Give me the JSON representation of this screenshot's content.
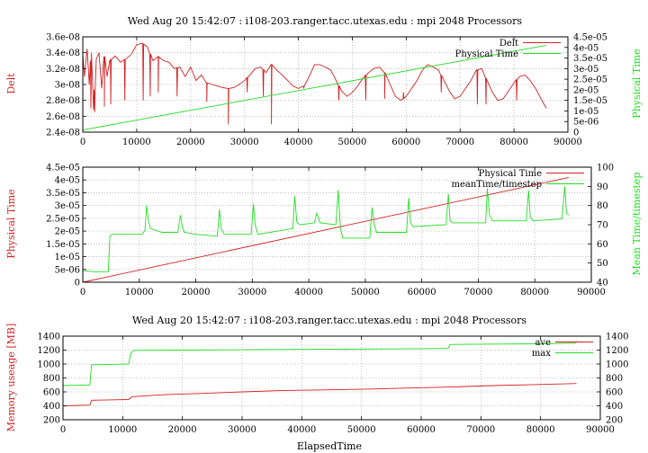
{
  "colors": {
    "red": "#d42020",
    "green": "#22dd22",
    "grid": "#b4b4b4",
    "axis": "#000000",
    "text": "#000000"
  },
  "chart_data": [
    {
      "type": "line",
      "title": "Wed Aug 20 15:42:07 : i108-203.ranger.tacc.utexas.edu : mpi 2048 Processors",
      "xlabel": "",
      "ylabel": "Delt",
      "y2label": "Physical Time",
      "xlim": [
        0,
        90000
      ],
      "ylim": [
        2.4e-08,
        3.6e-08
      ],
      "y2lim": [
        0,
        4.5e-05
      ],
      "xticks": [
        0,
        10000,
        20000,
        30000,
        40000,
        50000,
        60000,
        70000,
        80000,
        90000
      ],
      "yticks": [
        2.4e-08,
        2.6e-08,
        2.8e-08,
        3e-08,
        3.2e-08,
        3.4e-08,
        3.6e-08
      ],
      "yticklabels": [
        "2.4e-08",
        "2.6e-08",
        "2.8e-08",
        "3e-08",
        "3.2e-08",
        "3.4e-08",
        "3.6e-08"
      ],
      "y2ticks": [
        0,
        5e-06,
        1e-05,
        1.5e-05,
        2e-05,
        2.5e-05,
        3e-05,
        3.5e-05,
        4e-05,
        4.5e-05
      ],
      "y2ticklabels": [
        "0",
        "5e-06",
        "1e-05",
        "1.5e-05",
        "2e-05",
        "2.5e-05",
        "3e-05",
        "3.5e-05",
        "4e-05",
        "4.5e-05"
      ],
      "grid": true,
      "legend_position": "top-right",
      "series": [
        {
          "name": "Delt",
          "color": "red",
          "axis": "y",
          "x": [
            0,
            300,
            800,
            1200,
            1600,
            2000,
            2500,
            3000,
            3500,
            4000,
            4500,
            5000,
            6000,
            7000,
            8000,
            9000,
            10000,
            11000,
            12000,
            13000,
            14000,
            15000,
            16000,
            17000,
            18000,
            19000,
            20000,
            21000,
            22000,
            23000,
            24000,
            25000,
            26000,
            27000,
            28000,
            29000,
            30000,
            31000,
            32000,
            33000,
            34000,
            35000,
            36000,
            37000,
            38000,
            39000,
            40000,
            41000,
            42000,
            43000,
            44000,
            45000,
            46000,
            47000,
            48000,
            49000,
            50000,
            51000,
            52000,
            53000,
            54000,
            55000,
            56000,
            57000,
            58000,
            59000,
            60000,
            61000,
            62000,
            63000,
            64000,
            65000,
            66000,
            67000,
            68000,
            69000,
            70000,
            71000,
            72000,
            73000,
            74000,
            75000,
            76000,
            77000,
            78000,
            79000,
            80000,
            81000,
            82000,
            83000,
            84000,
            85000,
            86000
          ],
          "y": [
            3.38e-08,
            3.1e-08,
            3.45e-08,
            3e-08,
            3.4e-08,
            2.68e-08,
            3.32e-08,
            3.4e-08,
            2.95e-08,
            3.35e-08,
            3.1e-08,
            3.3e-08,
            3.36e-08,
            3.28e-08,
            3.32e-08,
            3.38e-08,
            3.5e-08,
            3.52e-08,
            3.47e-08,
            3.3e-08,
            3.35e-08,
            3.3e-08,
            3.28e-08,
            3.2e-08,
            3.22e-08,
            3.1e-08,
            3.22e-08,
            3.05e-08,
            3.12e-08,
            3.02e-08,
            3e-08,
            2.98e-08,
            2.96e-08,
            2.95e-08,
            2.96e-08,
            3e-08,
            3.05e-08,
            3.12e-08,
            3.2e-08,
            3.22e-08,
            3.15e-08,
            3.25e-08,
            3.18e-08,
            3.12e-08,
            3.05e-08,
            2.98e-08,
            2.95e-08,
            2.98e-08,
            3.1e-08,
            3.25e-08,
            3.25e-08,
            3.22e-08,
            3.18e-08,
            3.05e-08,
            2.92e-08,
            2.85e-08,
            2.9e-08,
            2.98e-08,
            3.08e-08,
            3.15e-08,
            3.2e-08,
            3.22e-08,
            3.15e-08,
            3e-08,
            2.85e-08,
            2.8e-08,
            2.85e-08,
            2.95e-08,
            3.05e-08,
            3.18e-08,
            3.25e-08,
            3.22e-08,
            3.18e-08,
            3.05e-08,
            2.92e-08,
            2.82e-08,
            2.85e-08,
            2.95e-08,
            3.05e-08,
            3.18e-08,
            3.2e-08,
            3.05e-08,
            2.9e-08,
            2.8e-08,
            2.82e-08,
            2.92e-08,
            3.02e-08,
            3.1e-08,
            3.12e-08,
            3.05e-08,
            2.95e-08,
            2.82e-08,
            2.7e-08
          ],
          "spikes": [
            [
              1500,
              2.7e-08
            ],
            [
              2200,
              2.65e-08
            ],
            [
              4000,
              2.72e-08
            ],
            [
              5200,
              2.75e-08
            ],
            [
              7800,
              2.8e-08
            ],
            [
              11200,
              2.8e-08
            ],
            [
              12500,
              2.85e-08
            ],
            [
              14000,
              2.9e-08
            ],
            [
              17500,
              2.85e-08
            ],
            [
              23000,
              2.78e-08
            ],
            [
              27000,
              2.5e-08
            ],
            [
              30500,
              2.9e-08
            ],
            [
              33500,
              2.85e-08
            ],
            [
              35000,
              2.5e-08
            ],
            [
              41000,
              2.95e-08
            ],
            [
              47500,
              2.8e-08
            ],
            [
              52500,
              2.8e-08
            ],
            [
              56000,
              2.82e-08
            ],
            [
              59500,
              2.9e-08
            ],
            [
              66500,
              2.9e-08
            ],
            [
              73200,
              2.75e-08
            ],
            [
              74800,
              2.75e-08
            ],
            [
              80500,
              2.8e-08
            ]
          ]
        },
        {
          "name": "Physical Time",
          "color": "green",
          "axis": "y2",
          "x": [
            0,
            86000
          ],
          "y": [
            1e-06,
            4.1e-05
          ]
        }
      ]
    },
    {
      "type": "line",
      "title": "",
      "xlabel": "",
      "ylabel": "Physical Time",
      "y2label": "Mean Time/timestep",
      "xlim": [
        0,
        90000
      ],
      "ylim": [
        0,
        4.5e-05
      ],
      "y2lim": [
        40,
        100
      ],
      "xticks": [
        0,
        10000,
        20000,
        30000,
        40000,
        50000,
        60000,
        70000,
        80000,
        90000
      ],
      "yticks": [
        0,
        5e-06,
        1e-05,
        1.5e-05,
        2e-05,
        2.5e-05,
        3e-05,
        3.5e-05,
        4e-05,
        4.5e-05
      ],
      "yticklabels": [
        "0",
        "5e-06",
        "1e-05",
        "1.5e-05",
        "2e-05",
        "2.5e-05",
        "3e-05",
        "3.5e-05",
        "4e-05",
        "4.5e-05"
      ],
      "y2ticks": [
        40,
        50,
        60,
        70,
        80,
        90,
        100
      ],
      "y2ticklabels": [
        "40",
        "50",
        "60",
        "70",
        "80",
        "90",
        "100"
      ],
      "grid": true,
      "legend_position": "top-right",
      "series": [
        {
          "name": "Physical Time",
          "color": "red",
          "axis": "y",
          "x": [
            0,
            86000
          ],
          "y": [
            0,
            4.1e-05
          ]
        },
        {
          "name": "meanTime/timestep",
          "color": "green",
          "axis": "y2",
          "x": [
            0,
            2000,
            4500,
            4800,
            5200,
            10500,
            11000,
            11300,
            11600,
            12000,
            14000,
            16800,
            17300,
            17600,
            18000,
            20000,
            23800,
            24200,
            24500,
            25000,
            29800,
            30200,
            30500,
            31000,
            37200,
            37500,
            37900,
            38500,
            41000,
            41400,
            42000,
            44800,
            45200,
            45600,
            46000,
            50800,
            51200,
            51600,
            52000,
            57300,
            57700,
            58000,
            58500,
            64300,
            64700,
            65000,
            65500,
            71300,
            71600,
            72000,
            72500,
            78500,
            78900,
            79200,
            79700,
            84800,
            85300,
            85600,
            86000
          ],
          "y": [
            46,
            45.5,
            45.5,
            64,
            65,
            65,
            67,
            80,
            72,
            68,
            66,
            66,
            75,
            69,
            66,
            65,
            64,
            78,
            68,
            65,
            65,
            81,
            70,
            65,
            68,
            85,
            71,
            70,
            71,
            76,
            71,
            70,
            88,
            68,
            63,
            63,
            79,
            70,
            66,
            66,
            84,
            71,
            69,
            70,
            86,
            72,
            71,
            71,
            89,
            75,
            72,
            72,
            88,
            74,
            72,
            73,
            90,
            76,
            75
          ]
        }
      ]
    },
    {
      "type": "line",
      "title": "Wed Aug 20 15:42:07 : i108-203.ranger.tacc.utexas.edu : mpi 2048 Processors",
      "xlabel": "ElapsedTime",
      "ylabel": "Memory useage [MB]",
      "y2label": "",
      "xlim": [
        0,
        90000
      ],
      "ylim": [
        200,
        1400
      ],
      "y2lim": [
        200,
        1400
      ],
      "xticks": [
        0,
        10000,
        20000,
        30000,
        40000,
        50000,
        60000,
        70000,
        80000,
        90000
      ],
      "yticks": [
        200,
        400,
        600,
        800,
        1000,
        1200,
        1400
      ],
      "yticklabels": [
        "200",
        "400",
        "600",
        "800",
        "1000",
        "1200",
        "1400"
      ],
      "y2ticks": [
        200,
        400,
        600,
        800,
        1000,
        1200,
        1400
      ],
      "y2ticklabels": [
        "200",
        "400",
        "600",
        "800",
        "1000",
        "1200",
        "1400"
      ],
      "grid": true,
      "legend_position": "top-right",
      "series": [
        {
          "name": "ave",
          "color": "red",
          "axis": "y",
          "x": [
            0,
            4500,
            4800,
            11000,
            11500,
            17000,
            24000,
            30000,
            37000,
            45000,
            51000,
            58000,
            65000,
            72000,
            79000,
            86000
          ],
          "y": [
            400,
            410,
            480,
            490,
            530,
            560,
            580,
            600,
            620,
            630,
            640,
            655,
            670,
            690,
            705,
            720
          ]
        },
        {
          "name": "max",
          "color": "green",
          "axis": "y",
          "x": [
            0,
            4500,
            4800,
            11000,
            11300,
            11800,
            20000,
            30000,
            40000,
            50000,
            60000,
            64500,
            64800,
            70000,
            80000,
            85800,
            86000
          ],
          "y": [
            690,
            700,
            990,
            1000,
            1150,
            1195,
            1200,
            1205,
            1210,
            1215,
            1220,
            1225,
            1280,
            1285,
            1290,
            1300,
            1330
          ]
        }
      ]
    }
  ]
}
